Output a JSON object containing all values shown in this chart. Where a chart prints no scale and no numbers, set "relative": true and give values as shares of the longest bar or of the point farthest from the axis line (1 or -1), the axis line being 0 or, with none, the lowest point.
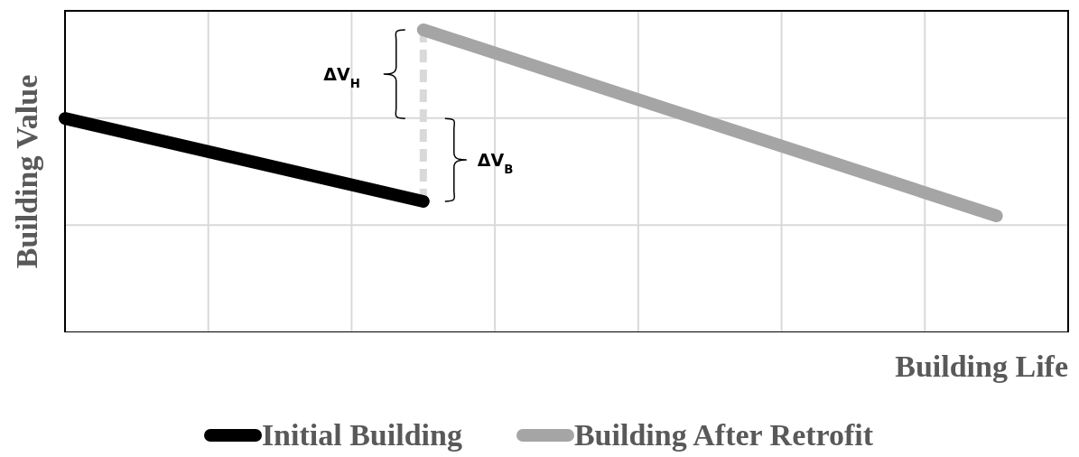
{
  "chart_data": {
    "type": "line",
    "xlabel": "Building Life",
    "ylabel": "Building Value",
    "relative": true,
    "grid": true,
    "legend": "bottom",
    "marker": "none",
    "categories": [
      null,
      null,
      null,
      null,
      null,
      null,
      null,
      null,
      null,
      null,
      null,
      null,
      null,
      null,
      null
    ],
    "series": [
      {
        "name": "Initial Building",
        "color": "#000000",
        "values": [
          0.707,
          null,
          null,
          null,
          null,
          0.433,
          null,
          null,
          null,
          null,
          null,
          null,
          null,
          null,
          null
        ]
      },
      {
        "name": "Building After Retrofit",
        "color": "#a5a5a5",
        "values": [
          null,
          null,
          null,
          null,
          null,
          1.0,
          null,
          null,
          null,
          null,
          null,
          null,
          null,
          0.385,
          null
        ]
      }
    ],
    "annotations": [
      "ΔV$_{H}$",
      "ΔV$_{B}$"
    ]
  }
}
